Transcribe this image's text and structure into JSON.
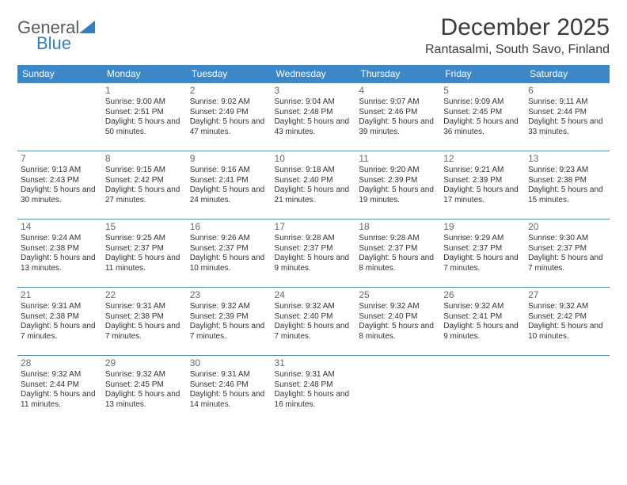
{
  "logo": {
    "text_top": "General",
    "text_bottom": "Blue",
    "gray_color": "#6a6a6a",
    "blue_color": "#2f7fc1",
    "triangle_color": "#2f7fc1"
  },
  "title": "December 2025",
  "location": "Rantasalmi, South Savo, Finland",
  "header_bg": "#3b87c8",
  "header_fg": "#ffffff",
  "divider_color": "#5a8bb5",
  "day_num_color": "#6a6a6a",
  "text_color": "#333333",
  "columns": [
    "Sunday",
    "Monday",
    "Tuesday",
    "Wednesday",
    "Thursday",
    "Friday",
    "Saturday"
  ],
  "weeks": [
    [
      null,
      {
        "n": "1",
        "sr": "9:00 AM",
        "ss": "2:51 PM",
        "dl": "5 hours and 50 minutes."
      },
      {
        "n": "2",
        "sr": "9:02 AM",
        "ss": "2:49 PM",
        "dl": "5 hours and 47 minutes."
      },
      {
        "n": "3",
        "sr": "9:04 AM",
        "ss": "2:48 PM",
        "dl": "5 hours and 43 minutes."
      },
      {
        "n": "4",
        "sr": "9:07 AM",
        "ss": "2:46 PM",
        "dl": "5 hours and 39 minutes."
      },
      {
        "n": "5",
        "sr": "9:09 AM",
        "ss": "2:45 PM",
        "dl": "5 hours and 36 minutes."
      },
      {
        "n": "6",
        "sr": "9:11 AM",
        "ss": "2:44 PM",
        "dl": "5 hours and 33 minutes."
      }
    ],
    [
      {
        "n": "7",
        "sr": "9:13 AM",
        "ss": "2:43 PM",
        "dl": "5 hours and 30 minutes."
      },
      {
        "n": "8",
        "sr": "9:15 AM",
        "ss": "2:42 PM",
        "dl": "5 hours and 27 minutes."
      },
      {
        "n": "9",
        "sr": "9:16 AM",
        "ss": "2:41 PM",
        "dl": "5 hours and 24 minutes."
      },
      {
        "n": "10",
        "sr": "9:18 AM",
        "ss": "2:40 PM",
        "dl": "5 hours and 21 minutes."
      },
      {
        "n": "11",
        "sr": "9:20 AM",
        "ss": "2:39 PM",
        "dl": "5 hours and 19 minutes."
      },
      {
        "n": "12",
        "sr": "9:21 AM",
        "ss": "2:39 PM",
        "dl": "5 hours and 17 minutes."
      },
      {
        "n": "13",
        "sr": "9:23 AM",
        "ss": "2:38 PM",
        "dl": "5 hours and 15 minutes."
      }
    ],
    [
      {
        "n": "14",
        "sr": "9:24 AM",
        "ss": "2:38 PM",
        "dl": "5 hours and 13 minutes."
      },
      {
        "n": "15",
        "sr": "9:25 AM",
        "ss": "2:37 PM",
        "dl": "5 hours and 11 minutes."
      },
      {
        "n": "16",
        "sr": "9:26 AM",
        "ss": "2:37 PM",
        "dl": "5 hours and 10 minutes."
      },
      {
        "n": "17",
        "sr": "9:28 AM",
        "ss": "2:37 PM",
        "dl": "5 hours and 9 minutes."
      },
      {
        "n": "18",
        "sr": "9:28 AM",
        "ss": "2:37 PM",
        "dl": "5 hours and 8 minutes."
      },
      {
        "n": "19",
        "sr": "9:29 AM",
        "ss": "2:37 PM",
        "dl": "5 hours and 7 minutes."
      },
      {
        "n": "20",
        "sr": "9:30 AM",
        "ss": "2:37 PM",
        "dl": "5 hours and 7 minutes."
      }
    ],
    [
      {
        "n": "21",
        "sr": "9:31 AM",
        "ss": "2:38 PM",
        "dl": "5 hours and 7 minutes."
      },
      {
        "n": "22",
        "sr": "9:31 AM",
        "ss": "2:38 PM",
        "dl": "5 hours and 7 minutes."
      },
      {
        "n": "23",
        "sr": "9:32 AM",
        "ss": "2:39 PM",
        "dl": "5 hours and 7 minutes."
      },
      {
        "n": "24",
        "sr": "9:32 AM",
        "ss": "2:40 PM",
        "dl": "5 hours and 7 minutes."
      },
      {
        "n": "25",
        "sr": "9:32 AM",
        "ss": "2:40 PM",
        "dl": "5 hours and 8 minutes."
      },
      {
        "n": "26",
        "sr": "9:32 AM",
        "ss": "2:41 PM",
        "dl": "5 hours and 9 minutes."
      },
      {
        "n": "27",
        "sr": "9:32 AM",
        "ss": "2:42 PM",
        "dl": "5 hours and 10 minutes."
      }
    ],
    [
      {
        "n": "28",
        "sr": "9:32 AM",
        "ss": "2:44 PM",
        "dl": "5 hours and 11 minutes."
      },
      {
        "n": "29",
        "sr": "9:32 AM",
        "ss": "2:45 PM",
        "dl": "5 hours and 13 minutes."
      },
      {
        "n": "30",
        "sr": "9:31 AM",
        "ss": "2:46 PM",
        "dl": "5 hours and 14 minutes."
      },
      {
        "n": "31",
        "sr": "9:31 AM",
        "ss": "2:48 PM",
        "dl": "5 hours and 16 minutes."
      },
      null,
      null,
      null
    ]
  ],
  "labels": {
    "sunrise_prefix": "Sunrise: ",
    "sunset_prefix": "Sunset: ",
    "daylight_prefix": "Daylight: "
  }
}
